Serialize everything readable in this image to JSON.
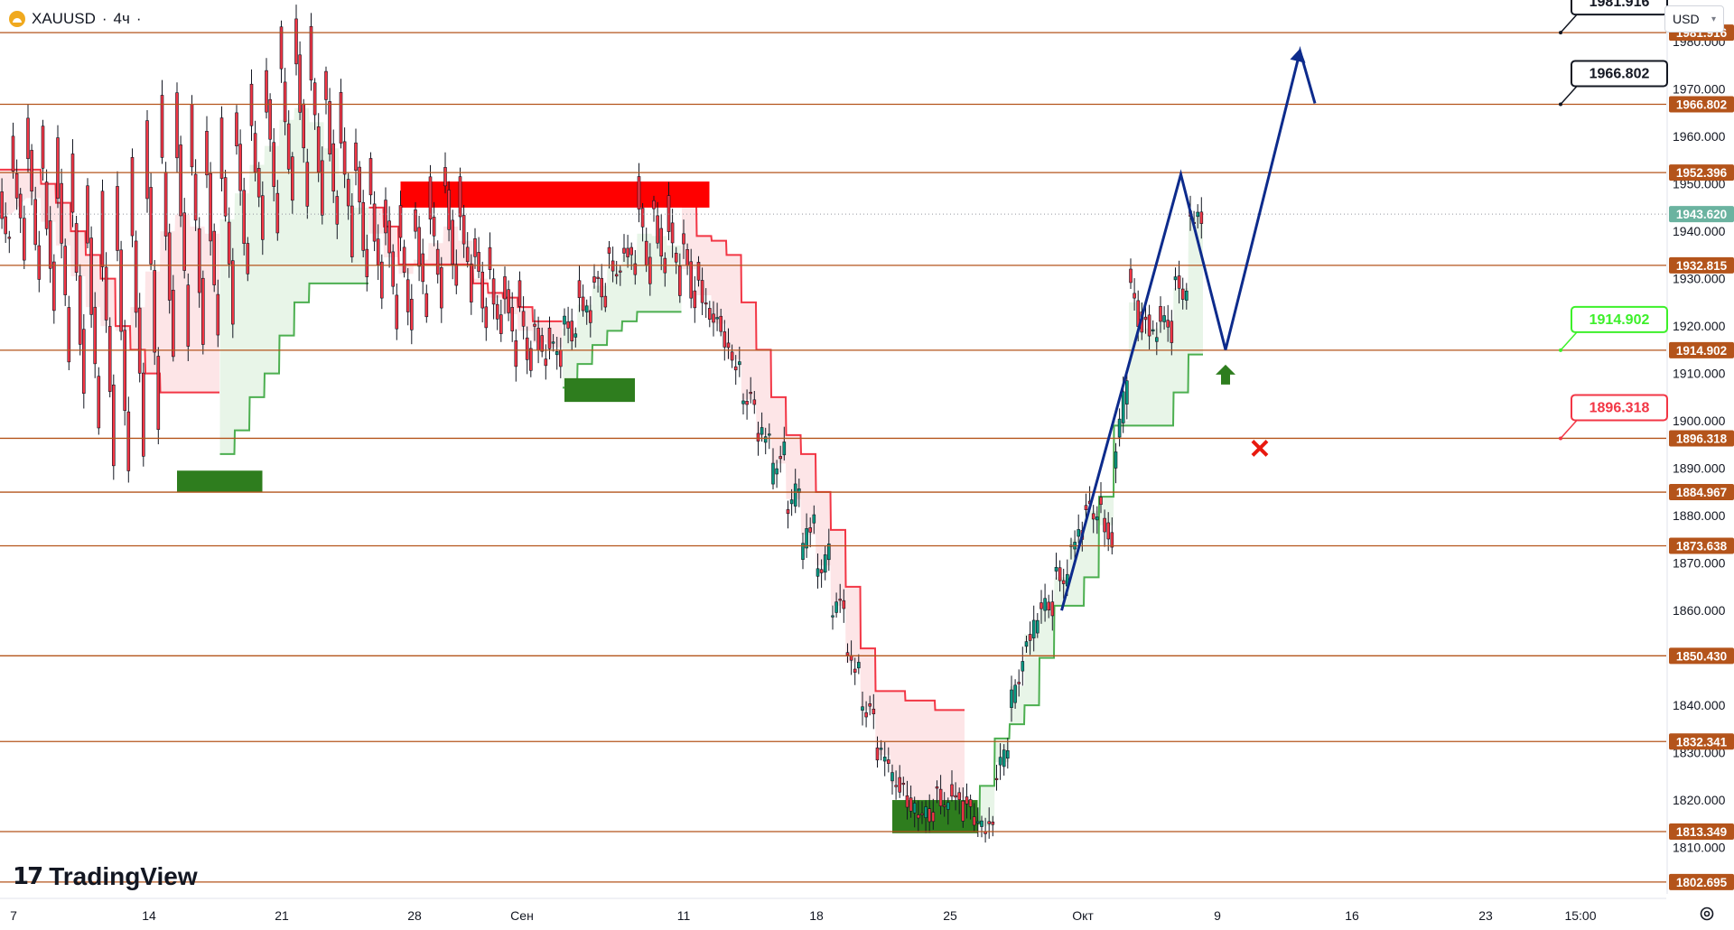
{
  "header": {
    "symbol": "XAUUSD",
    "separator": "·",
    "interval": "4ч",
    "trailing_dot": "·"
  },
  "currency_select": {
    "value": "USD"
  },
  "brand": {
    "name": "TradingView"
  },
  "colors": {
    "up_candle": "#089981",
    "down_candle": "#f23645",
    "level_line": "#b4541b",
    "level_label_bg": "#b4541b",
    "last_price_bg": "#6bb3a0",
    "projection": "#0d2b8c",
    "bear_zone": "#ff0000",
    "bull_zone": "#2e7d1e",
    "supertrend_up": "#4caf50",
    "supertrend_down": "#f23645"
  },
  "chart_data": {
    "type": "candlestick",
    "symbol": "XAUUSD",
    "ylim": [
      1800.2,
      1988.8
    ],
    "price_axis_ticks": [
      "1980.000",
      "1970.000",
      "1960.000",
      "1950.000",
      "1940.000",
      "1930.000",
      "1920.000",
      "1910.000",
      "1900.000",
      "1890.000",
      "1880.000",
      "1870.000",
      "1860.000",
      "1850.000",
      "1840.000",
      "1830.000",
      "1820.000",
      "1810.000"
    ],
    "time_axis_labels": [
      "7",
      "14",
      "21",
      "28",
      "Сен",
      "11",
      "18",
      "25",
      "Окт",
      "9",
      "16",
      "23",
      "15:00"
    ],
    "horizontal_levels": [
      "1981.916",
      "1966.802",
      "1952.396",
      "1932.815",
      "1914.902",
      "1896.318",
      "1884.967",
      "1873.638",
      "1850.430",
      "1832.341",
      "1813.349",
      "1802.695"
    ],
    "last_price": "1943.620",
    "projection_callouts": [
      {
        "price": "1981.916",
        "role": "target-2"
      },
      {
        "price": "1966.802",
        "role": "target-1"
      },
      {
        "price": "1914.902",
        "role": "entry"
      },
      {
        "price": "1896.318",
        "role": "stop"
      }
    ],
    "price_path": [
      [
        1950,
        1937
      ],
      [
        1960,
        1935
      ],
      [
        1964,
        1930
      ],
      [
        1962,
        1922
      ],
      [
        1960,
        1914
      ],
      [
        1956,
        1905
      ],
      [
        1950,
        1898
      ],
      [
        1948,
        1892
      ],
      [
        1950,
        1888
      ],
      [
        1955,
        1893
      ],
      [
        1964,
        1899
      ],
      [
        1968,
        1912
      ],
      [
        1970,
        1917
      ],
      [
        1966,
        1916
      ],
      [
        1962,
        1917
      ],
      [
        1963,
        1922
      ],
      [
        1966,
        1930
      ],
      [
        1970,
        1938
      ],
      [
        1975,
        1941
      ],
      [
        1982,
        1945
      ],
      [
        1986,
        1946
      ],
      [
        1982,
        1944
      ],
      [
        1975,
        1940
      ],
      [
        1968,
        1936
      ],
      [
        1960,
        1930
      ],
      [
        1954,
        1925
      ],
      [
        1948,
        1921
      ],
      [
        1944,
        1918
      ],
      [
        1946,
        1922
      ],
      [
        1950,
        1925
      ],
      [
        1955,
        1927
      ],
      [
        1950,
        1926
      ],
      [
        1940,
        1920
      ],
      [
        1935,
        1917
      ],
      [
        1932,
        1913
      ],
      [
        1928,
        1910
      ],
      [
        1922,
        1911
      ],
      [
        1918,
        1913
      ],
      [
        1922,
        1917
      ],
      [
        1928,
        1921
      ],
      [
        1932,
        1925
      ],
      [
        1935,
        1930
      ],
      [
        1938,
        1932
      ],
      [
        1950,
        1929
      ],
      [
        1948,
        1930
      ],
      [
        1946,
        1928
      ],
      [
        1941,
        1923
      ],
      [
        1932,
        1921
      ],
      [
        1924,
        1917
      ],
      [
        1915,
        1911
      ],
      [
        1905,
        1904
      ],
      [
        1896,
        1898
      ],
      [
        1888,
        1894
      ],
      [
        1880,
        1887
      ],
      [
        1872,
        1880
      ],
      [
        1866,
        1873
      ],
      [
        1860,
        1862
      ],
      [
        1850,
        1848
      ],
      [
        1840,
        1838
      ],
      [
        1830,
        1829
      ],
      [
        1825,
        1822
      ],
      [
        1820,
        1817
      ],
      [
        1818,
        1816
      ],
      [
        1822,
        1818
      ],
      [
        1824,
        1817
      ],
      [
        1820,
        1815
      ],
      [
        1815,
        1814
      ],
      [
        1824,
        1832
      ],
      [
        1840,
        1848
      ],
      [
        1852,
        1858
      ],
      [
        1862,
        1860
      ],
      [
        1868,
        1866
      ],
      [
        1874,
        1876
      ],
      [
        1882,
        1880
      ],
      [
        1884,
        1872
      ],
      [
        1890,
        1910
      ],
      [
        1932,
        1918
      ],
      [
        1922,
        1917
      ],
      [
        1924,
        1918
      ],
      [
        1930,
        1926
      ],
      [
        1944,
        1942
      ]
    ],
    "supertrend_segments": [
      {
        "dir": "down",
        "points": [
          [
            0,
            1953
          ],
          [
            2,
            1953
          ],
          [
            3,
            1950
          ],
          [
            4,
            1946
          ],
          [
            5,
            1940
          ],
          [
            6,
            1935
          ],
          [
            7,
            1930
          ],
          [
            8,
            1920
          ],
          [
            9,
            1915
          ],
          [
            10,
            1910
          ],
          [
            11,
            1906
          ],
          [
            12,
            1906
          ],
          [
            13,
            1906
          ],
          [
            14,
            1906
          ]
        ]
      },
      {
        "dir": "up",
        "points": [
          [
            15,
            1893
          ],
          [
            16,
            1898
          ],
          [
            17,
            1905
          ],
          [
            18,
            1910
          ],
          [
            19,
            1918
          ],
          [
            20,
            1925
          ],
          [
            21,
            1929
          ],
          [
            22,
            1929
          ],
          [
            23,
            1929
          ],
          [
            24,
            1929
          ]
        ]
      },
      {
        "dir": "down",
        "points": [
          [
            25,
            1945
          ],
          [
            26,
            1941
          ],
          [
            27,
            1933
          ],
          [
            28,
            1933
          ],
          [
            29,
            1933
          ],
          [
            30,
            1933
          ],
          [
            31,
            1933
          ],
          [
            32,
            1929
          ],
          [
            33,
            1927
          ],
          [
            34,
            1926
          ],
          [
            35,
            1924
          ],
          [
            36,
            1921
          ],
          [
            37,
            1921
          ]
        ]
      },
      {
        "dir": "up",
        "points": [
          [
            38,
            1907
          ],
          [
            39,
            1912
          ],
          [
            40,
            1916
          ],
          [
            41,
            1919
          ],
          [
            42,
            1921
          ],
          [
            43,
            1923
          ],
          [
            44,
            1923
          ],
          [
            45,
            1923
          ]
        ]
      },
      {
        "dir": "down",
        "points": [
          [
            46,
            1946
          ],
          [
            47,
            1939
          ],
          [
            48,
            1938
          ],
          [
            49,
            1935
          ],
          [
            50,
            1925
          ],
          [
            51,
            1915
          ],
          [
            52,
            1905
          ],
          [
            53,
            1897
          ],
          [
            54,
            1893
          ],
          [
            55,
            1885
          ],
          [
            56,
            1877
          ],
          [
            57,
            1865
          ],
          [
            58,
            1852
          ],
          [
            59,
            1843
          ],
          [
            60,
            1843
          ],
          [
            61,
            1841
          ],
          [
            62,
            1841
          ],
          [
            63,
            1839
          ],
          [
            64,
            1839
          ]
        ]
      },
      {
        "dir": "up",
        "points": [
          [
            65,
            1815
          ],
          [
            66,
            1823
          ],
          [
            67,
            1833
          ],
          [
            68,
            1836
          ],
          [
            69,
            1840
          ],
          [
            70,
            1850
          ],
          [
            71,
            1861
          ],
          [
            72,
            1861
          ],
          [
            73,
            1867
          ],
          [
            74,
            1884
          ],
          [
            75,
            1899
          ],
          [
            76,
            1899
          ],
          [
            77,
            1899
          ],
          [
            78,
            1899
          ],
          [
            79,
            1906
          ],
          [
            80,
            1914
          ]
        ]
      }
    ],
    "zones": [
      {
        "kind": "bear",
        "start": 27,
        "end": 47,
        "price_top": 1950.5,
        "price_bottom": 1945
      },
      {
        "kind": "bull",
        "start": 12,
        "end": 17,
        "price_top": 1889.5,
        "price_bottom": 1885
      },
      {
        "kind": "bull",
        "start": 38,
        "end": 42,
        "price_top": 1909,
        "price_bottom": 1904
      },
      {
        "kind": "bull",
        "start": 60,
        "end": 65,
        "price_top": 1820,
        "price_bottom": 1813
      }
    ],
    "projection_path": [
      [
        1860,
        71
      ],
      [
        1952,
        79
      ],
      [
        1915,
        82
      ],
      [
        1978,
        87
      ],
      [
        1967,
        88
      ]
    ]
  }
}
